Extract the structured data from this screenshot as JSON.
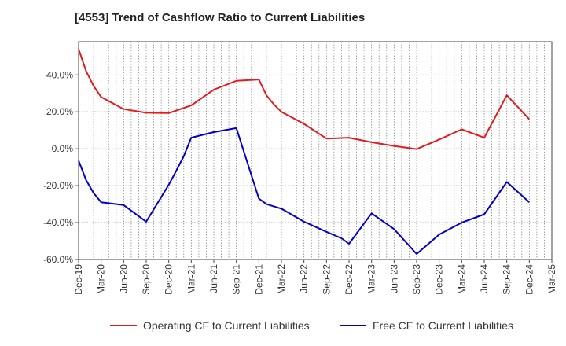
{
  "chart_data": {
    "type": "line",
    "title": "[4553]  Trend of Cashflow Ratio to Current Liabilities",
    "xlabel": "",
    "ylabel": "",
    "ylim": [
      -60,
      58
    ],
    "yticks": [
      "40.0%",
      "20.0%",
      "0.0%",
      "-20.0%",
      "-40.0%",
      "-60.0%"
    ],
    "ytick_values": [
      40,
      20,
      0,
      -20,
      -40,
      -60
    ],
    "xticks": [
      "Dec-19",
      "Mar-20",
      "Jun-20",
      "Sep-20",
      "Dec-20",
      "Mar-21",
      "Jun-21",
      "Sep-21",
      "Dec-21",
      "Mar-22",
      "Jun-22",
      "Sep-22",
      "Dec-22",
      "Mar-23",
      "Jun-23",
      "Sep-23",
      "Dec-23",
      "Mar-24",
      "Jun-24",
      "Sep-24",
      "Dec-24",
      "Mar-25"
    ],
    "grid": true,
    "legend_position": "bottom",
    "series": [
      {
        "name": "Operating CF to Current Liabilities",
        "color": "#e41a1c",
        "points": [
          [
            0,
            54
          ],
          [
            1,
            42
          ],
          [
            2,
            34
          ],
          [
            3,
            28
          ],
          [
            6,
            21.5
          ],
          [
            9,
            19.5
          ],
          [
            12,
            19.3
          ],
          [
            15,
            23.5
          ],
          [
            18,
            32
          ],
          [
            21,
            36.8
          ],
          [
            24,
            37.5
          ],
          [
            25,
            29
          ],
          [
            26,
            24
          ],
          [
            27,
            20
          ],
          [
            30,
            13.5
          ],
          [
            33,
            5.5
          ],
          [
            36,
            6
          ],
          [
            39,
            3.5
          ],
          [
            42,
            1.5
          ],
          [
            45,
            -0.2
          ],
          [
            48,
            5
          ],
          [
            51,
            10.5
          ],
          [
            54,
            6
          ],
          [
            57,
            29
          ],
          [
            60,
            16
          ]
        ]
      },
      {
        "name": "Free CF to Current Liabilities",
        "color": "#0000cc",
        "points": [
          [
            0,
            -6.5
          ],
          [
            1,
            -17
          ],
          [
            2,
            -24
          ],
          [
            3,
            -29
          ],
          [
            6,
            -30.5
          ],
          [
            9,
            -39.5
          ],
          [
            12,
            -19.5
          ],
          [
            13,
            -12
          ],
          [
            14,
            -4
          ],
          [
            15,
            6
          ],
          [
            18,
            9
          ],
          [
            21,
            11.2
          ],
          [
            24,
            -27
          ],
          [
            25,
            -30
          ],
          [
            27,
            -32.5
          ],
          [
            30,
            -39.5
          ],
          [
            33,
            -45
          ],
          [
            35,
            -48.5
          ],
          [
            36,
            -51.5
          ],
          [
            39,
            -35
          ],
          [
            42,
            -43.5
          ],
          [
            45,
            -57
          ],
          [
            48,
            -46.5
          ],
          [
            51,
            -40
          ],
          [
            54,
            -35.5
          ],
          [
            57,
            -18
          ],
          [
            60,
            -29
          ]
        ]
      }
    ]
  }
}
